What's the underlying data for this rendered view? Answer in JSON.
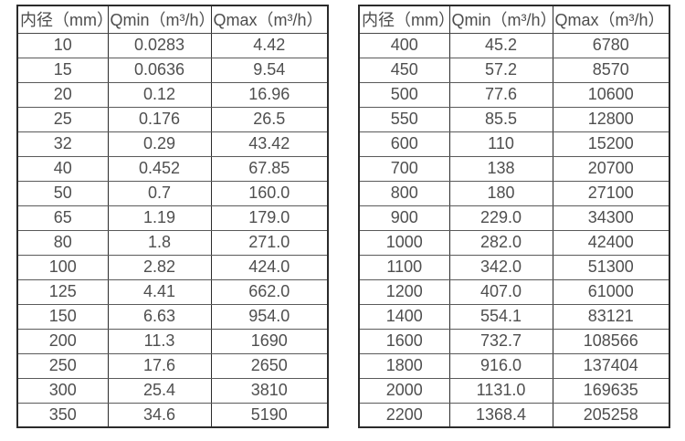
{
  "page": {
    "description": "Flow meter diameter vs minimum and maximum flow rate specification tables",
    "background_color": "#ffffff",
    "border_color": "#2b2b2b",
    "row_line_color": "#5a5a5a",
    "text_color": "#4f4f4f"
  },
  "tables": [
    {
      "headers": [
        "内径（mm）",
        "Qmin（m³/h）",
        "Qmax（m³/h）"
      ],
      "rows": [
        [
          "10",
          "0.0283",
          "4.42"
        ],
        [
          "15",
          "0.0636",
          "9.54"
        ],
        [
          "20",
          "0.12",
          "16.96"
        ],
        [
          "25",
          "0.176",
          "26.5"
        ],
        [
          "32",
          "0.29",
          "43.42"
        ],
        [
          "40",
          "0.452",
          "67.85"
        ],
        [
          "50",
          "0.7",
          "160.0"
        ],
        [
          "65",
          "1.19",
          "179.0"
        ],
        [
          "80",
          "1.8",
          "271.0"
        ],
        [
          "100",
          "2.82",
          "424.0"
        ],
        [
          "125",
          "4.41",
          "662.0"
        ],
        [
          "150",
          "6.63",
          "954.0"
        ],
        [
          "200",
          "11.3",
          "1690"
        ],
        [
          "250",
          "17.6",
          "2650"
        ],
        [
          "300",
          "25.4",
          "3810"
        ],
        [
          "350",
          "34.6",
          "5190"
        ]
      ]
    },
    {
      "headers": [
        "内径（mm）",
        "Qmin（m³/h）",
        "Qmax（m³/h）"
      ],
      "rows": [
        [
          "400",
          "45.2",
          "6780"
        ],
        [
          "450",
          "57.2",
          "8570"
        ],
        [
          "500",
          "77.6",
          "10600"
        ],
        [
          "550",
          "85.5",
          "12800"
        ],
        [
          "600",
          "110",
          "15200"
        ],
        [
          "700",
          "138",
          "20700"
        ],
        [
          "800",
          "180",
          "27100"
        ],
        [
          "900",
          "229.0",
          "34300"
        ],
        [
          "1000",
          "282.0",
          "42400"
        ],
        [
          "1100",
          "342.0",
          "51300"
        ],
        [
          "1200",
          "407.0",
          "61000"
        ],
        [
          "1400",
          "554.1",
          "83121"
        ],
        [
          "1600",
          "732.7",
          "108566"
        ],
        [
          "1800",
          "916.0",
          "137404"
        ],
        [
          "2000",
          "1131.0",
          "169635"
        ],
        [
          "2200",
          "1368.4",
          "205258"
        ]
      ]
    }
  ]
}
